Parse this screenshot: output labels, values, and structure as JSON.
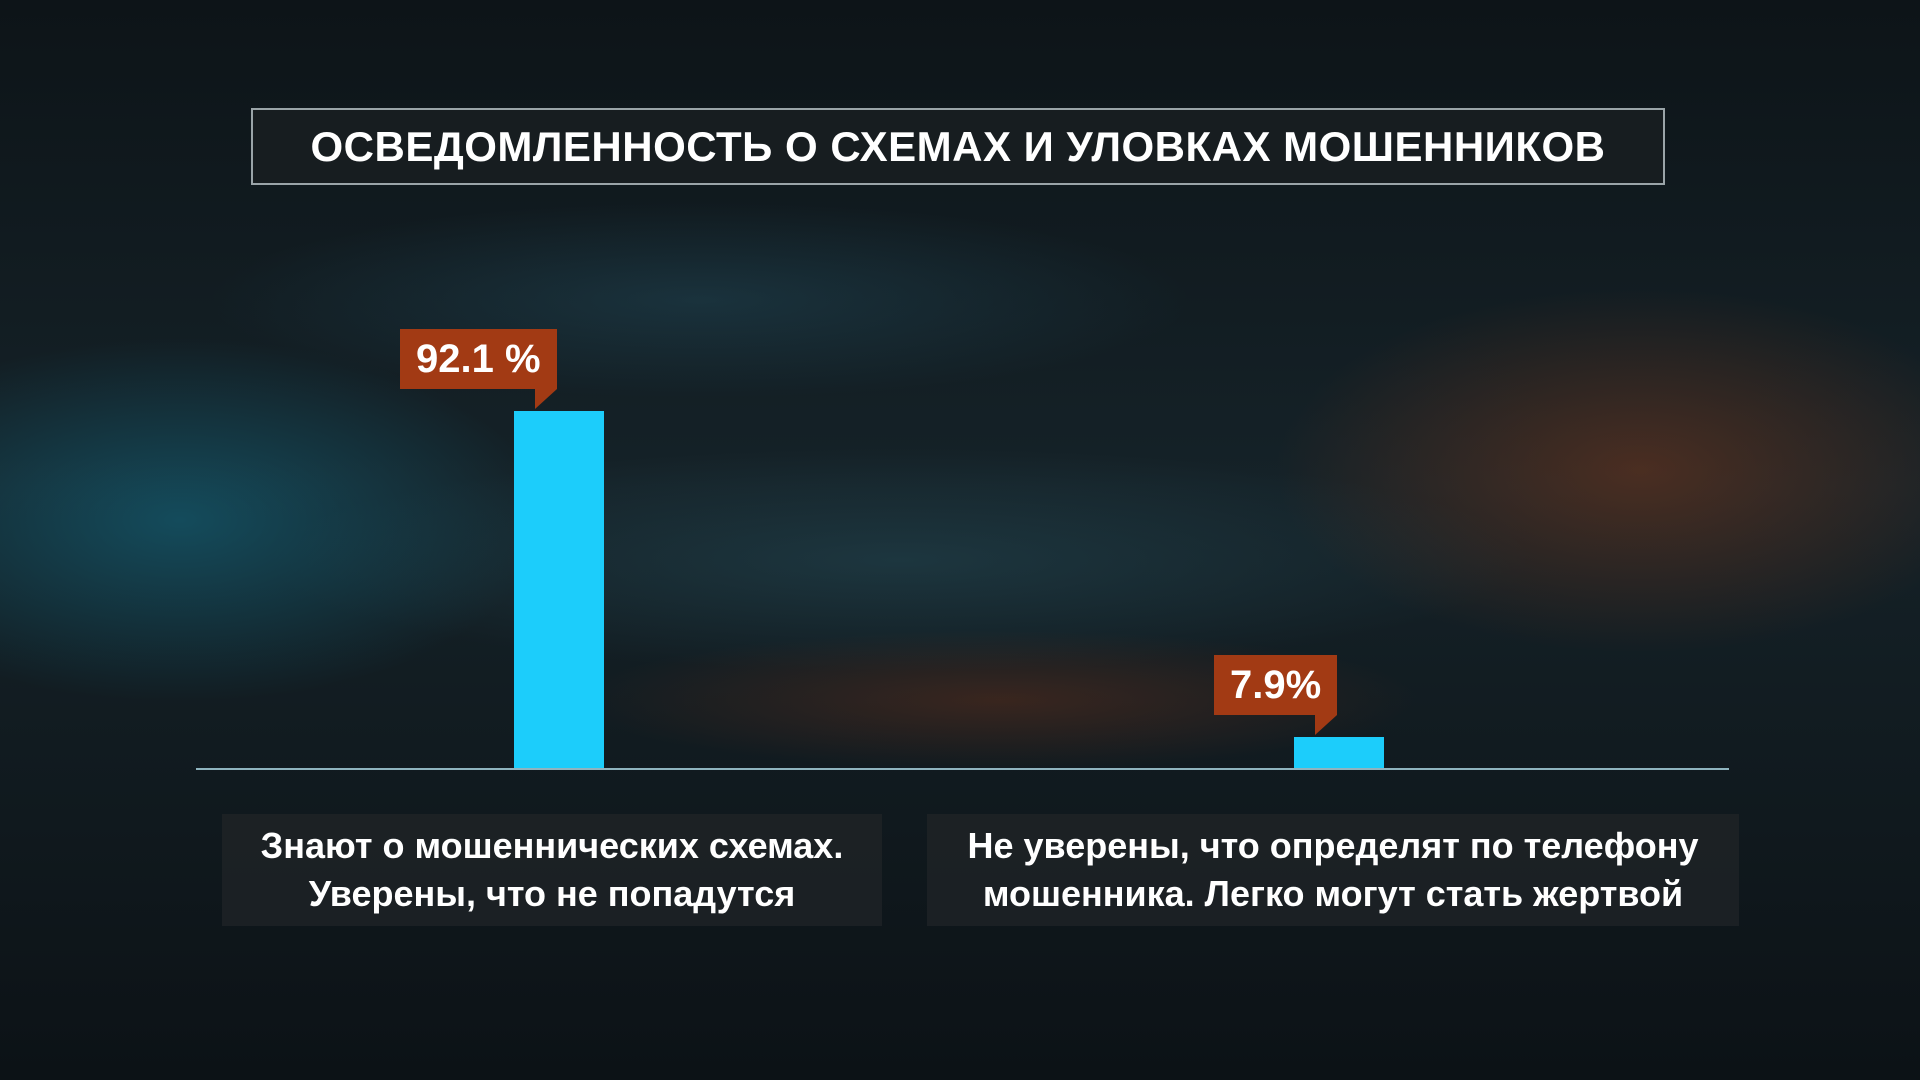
{
  "chart_data": {
    "type": "bar",
    "title": "ОСВЕДОМЛЕННОСТЬ О СХЕМАХ И УЛОВКАХ МОШЕННИКОВ",
    "categories": [
      "Знают о мошеннических схемах.\nУверены, что не попадутся",
      "Не уверены, что определят по телефону\nмошенника. Легко могут стать жертвой"
    ],
    "values": [
      92.1,
      7.9
    ],
    "value_labels": [
      "92.1 %",
      "7.9%"
    ],
    "color": "#1ccdfb",
    "label_color": "#a23a14"
  }
}
